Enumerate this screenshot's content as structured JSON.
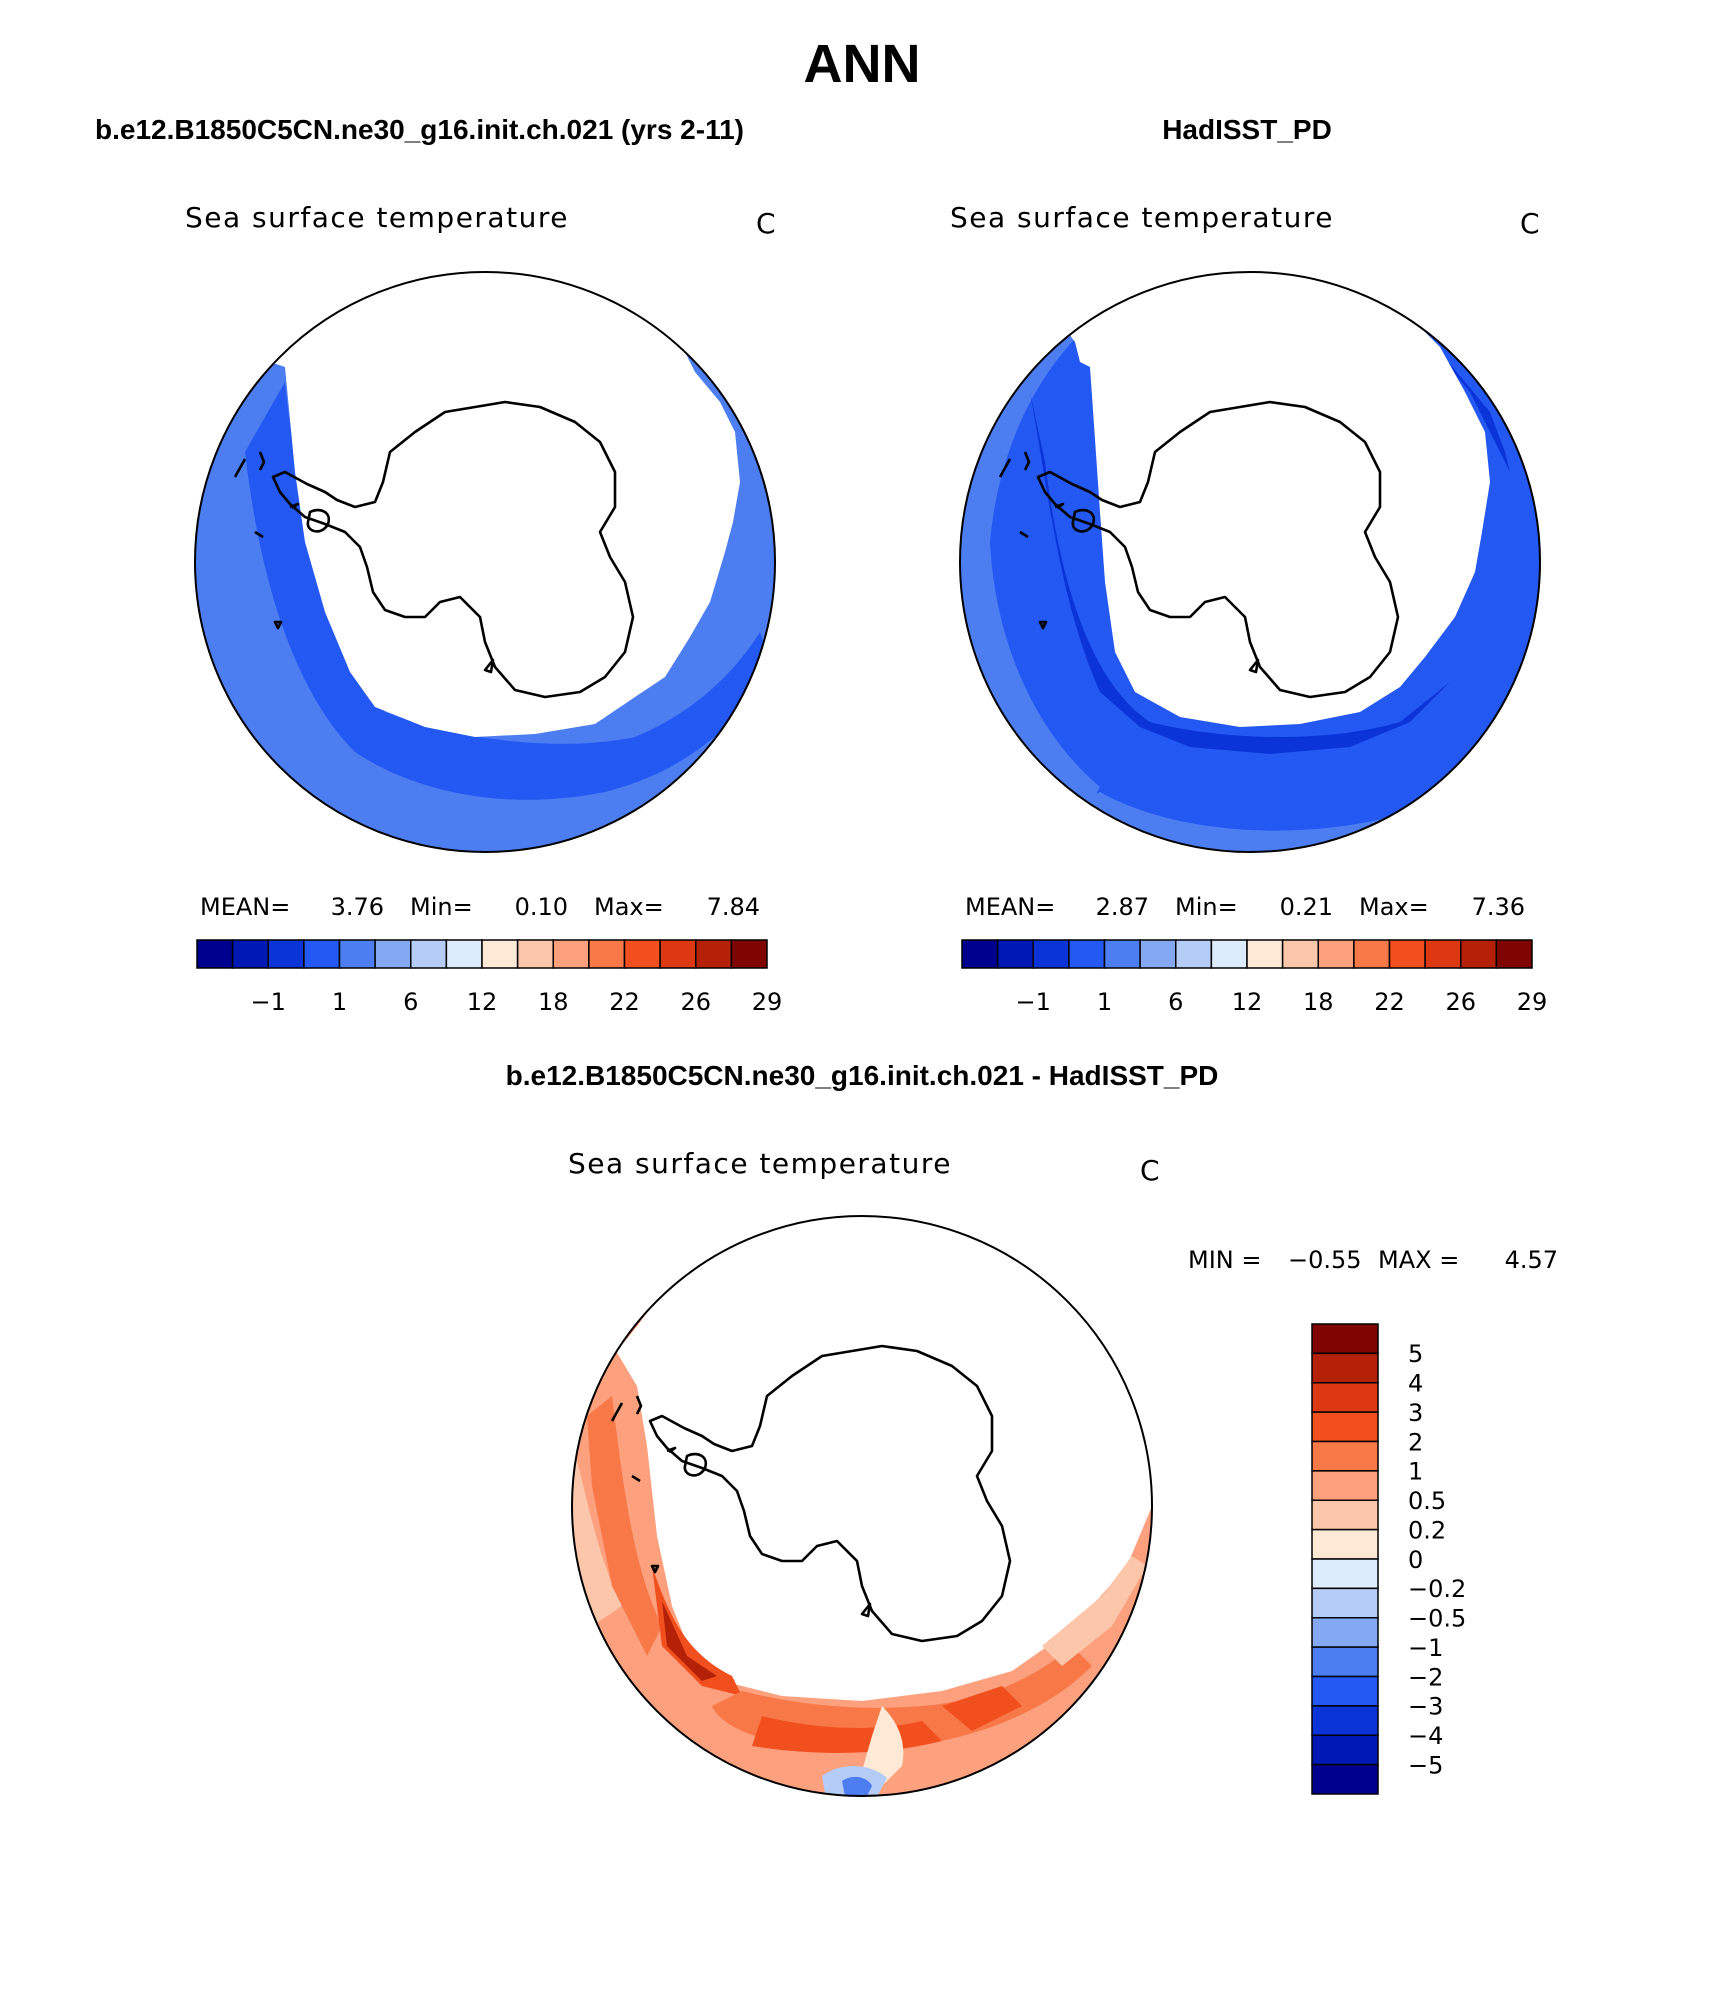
{
  "title": "ANN",
  "panels": [
    {
      "header": "b.e12.B1850C5CN.ne30_g16.init.ch.021 (yrs 2-11)",
      "variable": "Sea surface temperature",
      "units": "C",
      "stats": {
        "mean_label": "MEAN=",
        "mean": "3.76",
        "min_label": "Min=",
        "min": "0.10",
        "max_label": "Max=",
        "max": "7.84"
      }
    },
    {
      "header": "HadISST_PD",
      "variable": "Sea surface temperature",
      "units": "C",
      "stats": {
        "mean_label": "MEAN=",
        "mean": "2.87",
        "min_label": "Min=",
        "min": "0.21",
        "max_label": "Max=",
        "max": "7.36"
      }
    }
  ],
  "diff_panel": {
    "header": "b.e12.B1850C5CN.ne30_g16.init.ch.021 - HadISST_PD",
    "variable": "Sea surface temperature",
    "units": "C",
    "min_label": "MIN =",
    "min": "−0.55",
    "max_label": "MAX =",
    "max": "4.57"
  },
  "colorbar_main": {
    "tick_labels": [
      "−1",
      "1",
      "6",
      "12",
      "18",
      "22",
      "26",
      "29"
    ],
    "colors": [
      "#00008f",
      "#0019b4",
      "#0a34d8",
      "#2458f2",
      "#4c7ef2",
      "#84a8f2",
      "#b4ccf6",
      "#dcecfc",
      "#fde9d6",
      "#fcc6aa",
      "#fca07e",
      "#f87848",
      "#f24f1e",
      "#dc3812",
      "#b52106",
      "#7e0500"
    ]
  },
  "colorbar_diff": {
    "tick_labels": [
      "5",
      "4",
      "3",
      "2",
      "1",
      "0.5",
      "0.2",
      "0",
      "−0.2",
      "−0.5",
      "−1",
      "−2",
      "−3",
      "−4",
      "−5"
    ],
    "colors_top_to_bottom": [
      "#7e0500",
      "#b52106",
      "#dc3812",
      "#f24f1e",
      "#f87848",
      "#fca07e",
      "#fcc6aa",
      "#fde9d6",
      "#dcecfc",
      "#b4ccf6",
      "#84a8f2",
      "#4c7ef2",
      "#2458f2",
      "#0a34d8",
      "#0019b4",
      "#00008f"
    ]
  },
  "map_fill_colors": {
    "land_ice": "#ffffff",
    "coast": "#000000"
  }
}
